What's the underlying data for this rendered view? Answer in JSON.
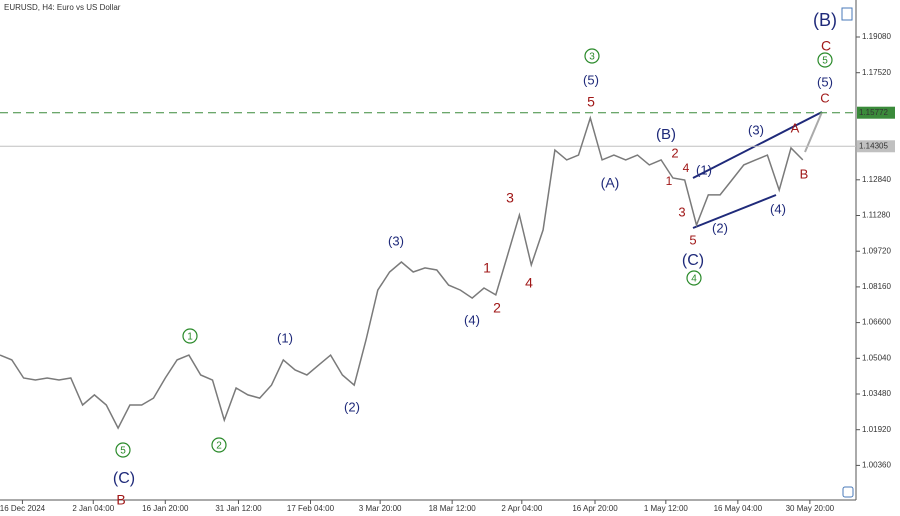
{
  "chart_data": {
    "type": "line",
    "title": "EURUSD, H4: Euro vs US Dollar",
    "x": [
      0,
      1,
      2,
      3,
      4,
      5,
      6,
      7,
      8,
      9,
      10,
      11,
      12,
      13,
      14,
      15,
      16,
      17,
      18,
      19,
      20,
      21,
      22,
      23,
      24,
      25,
      26,
      27,
      28,
      29,
      30,
      31,
      32,
      33,
      34,
      35,
      36,
      37,
      38,
      39,
      40,
      41,
      42,
      43,
      44,
      45,
      46,
      47,
      48,
      49,
      50,
      51,
      52,
      53,
      54,
      55,
      56,
      57,
      58,
      59,
      60,
      61,
      62,
      63,
      64,
      65,
      66,
      67,
      68
    ],
    "series": [
      {
        "name": "EURUSD",
        "color": "#7a7a7a",
        "values": [
          1.0518,
          1.0497,
          1.0418,
          1.0409,
          1.0418,
          1.0409,
          1.0418,
          1.03,
          1.0344,
          1.03,
          1.0199,
          1.03,
          1.03,
          1.033,
          1.0418,
          1.0497,
          1.0518,
          1.0431,
          1.0409,
          1.0234,
          1.0374,
          1.0344,
          1.033,
          1.0387,
          1.0497,
          1.0453,
          1.0431,
          1.0475,
          1.0518,
          1.0431,
          1.0387,
          1.0584,
          1.0802,
          1.0881,
          1.0925,
          1.0881,
          1.0899,
          1.089,
          1.0824,
          1.0802,
          1.0767,
          1.0811,
          1.0781,
          1.0955,
          1.113,
          1.0912,
          1.1065,
          1.1414,
          1.1371,
          1.1392,
          1.1554,
          1.1371,
          1.1392,
          1.1371,
          1.1392,
          1.1349,
          1.1371,
          1.1292,
          1.1283,
          1.1086,
          1.1218,
          1.1218,
          1.1283,
          1.1349,
          1.1371,
          1.1392,
          1.1239,
          1.1423,
          1.1371
        ]
      }
    ],
    "xlim": [
      0,
      72
    ],
    "xticks": [
      {
        "value": 1.9,
        "label": "16 Dec 2024"
      },
      {
        "value": 7.9,
        "label": "2 Jan 04:00"
      },
      {
        "value": 14,
        "label": "16 Jan 20:00"
      },
      {
        "value": 20.2,
        "label": "31 Jan 12:00"
      },
      {
        "value": 26.3,
        "label": "17 Feb 04:00"
      },
      {
        "value": 32.2,
        "label": "3 Mar 20:00"
      },
      {
        "value": 38.3,
        "label": "18 Mar 12:00"
      },
      {
        "value": 44.2,
        "label": "2 Apr 04:00"
      },
      {
        "value": 50.4,
        "label": "16 Apr 20:00"
      },
      {
        "value": 56.4,
        "label": "1 May 12:00"
      },
      {
        "value": 62.5,
        "label": "16 May 04:00"
      },
      {
        "value": 68.6,
        "label": "30 May 20:00"
      }
    ],
    "ylim": [
      0.98848,
      1.20697
    ],
    "yticks": [
      {
        "value": 1.0036,
        "label": "1.00360"
      },
      {
        "value": 1.0192,
        "label": "1.01920"
      },
      {
        "value": 1.0348,
        "label": "1.03480"
      },
      {
        "value": 1.0504,
        "label": "1.05040"
      },
      {
        "value": 1.066,
        "label": "1.06600"
      },
      {
        "value": 1.0816,
        "label": "1.08160"
      },
      {
        "value": 1.0972,
        "label": "1.09720"
      },
      {
        "value": 1.1128,
        "label": "1.11280"
      },
      {
        "value": 1.1284,
        "label": "1.12840"
      },
      {
        "value": 1.1752,
        "label": "1.17520"
      },
      {
        "value": 1.1908,
        "label": "1.19080"
      }
    ],
    "price_lines": [
      {
        "value": 1.15772,
        "label": "1.15772",
        "color": "#3a8a3a",
        "dashed": true
      },
      {
        "value": 1.14305,
        "label": "1.14305",
        "color": "#c0c0c0",
        "dashed": false
      }
    ],
    "annotations": [
      {
        "text": "(B)",
        "color": "#1f2a7a"
      },
      {
        "text": "C",
        "color": "#a01818"
      },
      {
        "text": "5",
        "color": "#2a8a2a",
        "circled": true
      },
      {
        "text": "(5)",
        "color": "#1f2a7a"
      },
      {
        "text": "C",
        "color": "#a01818"
      },
      {
        "text": "A",
        "color": "#a01818"
      },
      {
        "text": "(3)",
        "color": "#1f2a7a"
      },
      {
        "text": "(1)",
        "color": "#1f2a7a"
      },
      {
        "text": "B",
        "color": "#a01818"
      },
      {
        "text": "(4)",
        "color": "#1f2a7a"
      },
      {
        "text": "(2)",
        "color": "#1f2a7a"
      },
      {
        "text": "(B)",
        "color": "#1f2a7a"
      },
      {
        "text": "2",
        "color": "#a01818"
      },
      {
        "text": "4",
        "color": "#a01818"
      },
      {
        "text": "1",
        "color": "#a01818"
      },
      {
        "text": "(A)",
        "color": "#1f2a7a"
      },
      {
        "text": "3",
        "color": "#a01818"
      },
      {
        "text": "5",
        "color": "#a01818"
      },
      {
        "text": "(C)",
        "color": "#1f2a7a"
      },
      {
        "text": "4",
        "color": "#2a8a2a",
        "circled": true
      },
      {
        "text": "3",
        "color": "#2a8a2a",
        "circled": true
      },
      {
        "text": "(5)",
        "color": "#1f2a7a"
      },
      {
        "text": "5",
        "color": "#a01818"
      },
      {
        "text": "3",
        "color": "#a01818"
      },
      {
        "text": "1",
        "color": "#a01818"
      },
      {
        "text": "4",
        "color": "#a01818"
      },
      {
        "text": "2",
        "color": "#a01818"
      },
      {
        "text": "(4)",
        "color": "#1f2a7a"
      },
      {
        "text": "(3)",
        "color": "#1f2a7a"
      },
      {
        "text": "(2)",
        "color": "#1f2a7a"
      },
      {
        "text": "(1)",
        "color": "#1f2a7a"
      },
      {
        "text": "1",
        "color": "#2a8a2a",
        "circled": true
      },
      {
        "text": "2",
        "color": "#2a8a2a",
        "circled": true
      },
      {
        "text": "5",
        "color": "#2a8a2a",
        "circled": true
      },
      {
        "text": "(C)",
        "color": "#1f2a7a"
      },
      {
        "text": "B",
        "color": "#a01818"
      }
    ]
  }
}
